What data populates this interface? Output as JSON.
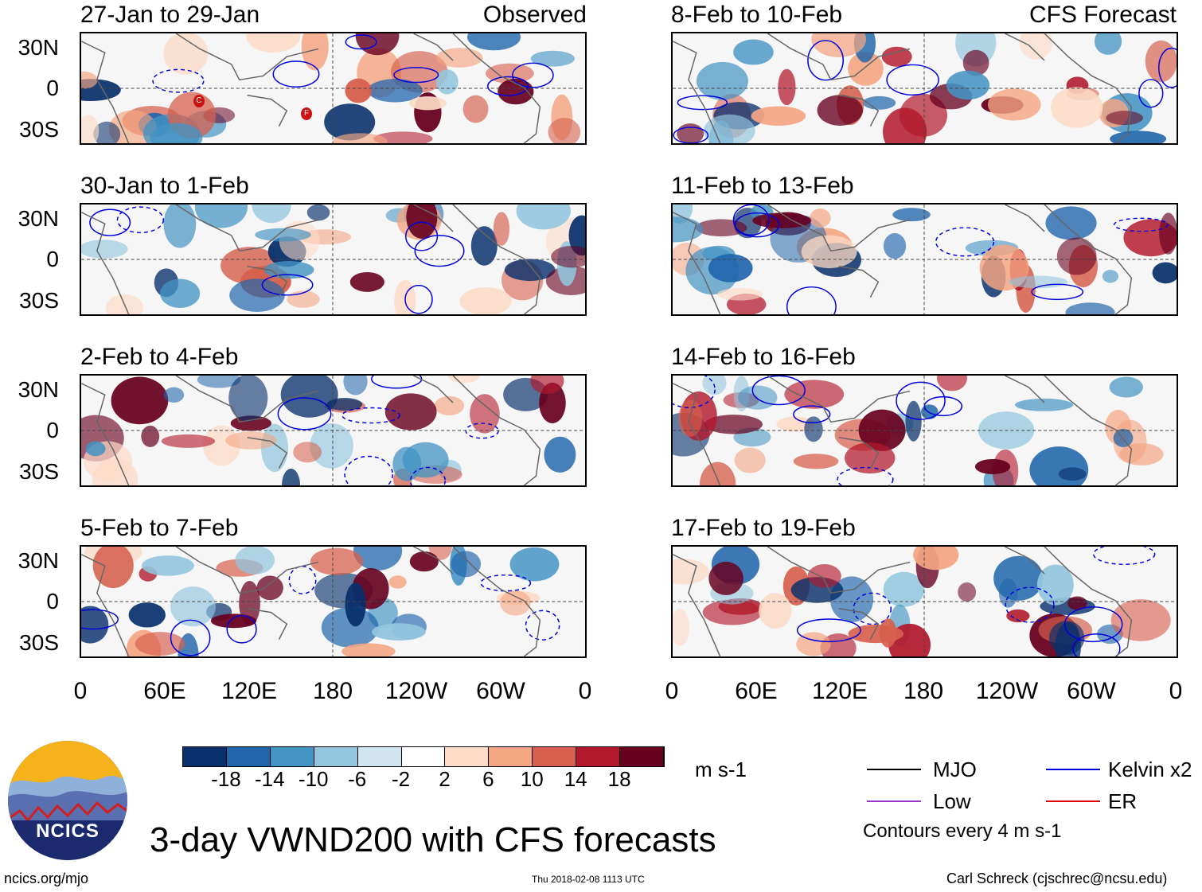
{
  "panels_left": [
    {
      "title": "27-Jan to 29-Jan",
      "right_label": "Observed"
    },
    {
      "title": "30-Jan to 1-Feb",
      "right_label": ""
    },
    {
      "title": "2-Feb to 4-Feb",
      "right_label": ""
    },
    {
      "title": "5-Feb to 7-Feb",
      "right_label": ""
    }
  ],
  "panels_right": [
    {
      "title": "8-Feb to 10-Feb",
      "right_label": "CFS Forecast"
    },
    {
      "title": "11-Feb to 13-Feb",
      "right_label": ""
    },
    {
      "title": "14-Feb to 16-Feb",
      "right_label": ""
    },
    {
      "title": "17-Feb to 19-Feb",
      "right_label": ""
    }
  ],
  "lat_labels": [
    "30N",
    "0",
    "30S"
  ],
  "lon_labels": [
    "0",
    "60E",
    "120E",
    "180",
    "120W",
    "60W",
    "0"
  ],
  "colorbar": {
    "colors": [
      "#08306b",
      "#2166ac",
      "#4393c3",
      "#92c5de",
      "#d1e5f0",
      "#ffffff",
      "#fddbc7",
      "#f4a582",
      "#d6604d",
      "#b2182b",
      "#67001f"
    ],
    "ticks": [
      "-18",
      "-14",
      "-10",
      "-6",
      "-2",
      "2",
      "6",
      "10",
      "14",
      "18"
    ],
    "units": "m s-1"
  },
  "legend": {
    "items": [
      {
        "label": "MJO",
        "color": "#000000"
      },
      {
        "label": "Kelvin x2",
        "color": "#0000dd"
      },
      {
        "label": "Low",
        "color": "#9933cc"
      },
      {
        "label": "ER",
        "color": "#dd0000"
      }
    ],
    "note": "Contours every 4 m s-1"
  },
  "logo_text": "NCICS",
  "main_title": "3-day VWND200 with CFS forecasts",
  "footer": {
    "left": "ncics.org/mjo",
    "center": "Thu 2018-02-08 1113 UTC",
    "right": "Carl Schreck (cjschrec@ncsu.edu)"
  },
  "storm_markers": [
    "C",
    "F"
  ]
}
